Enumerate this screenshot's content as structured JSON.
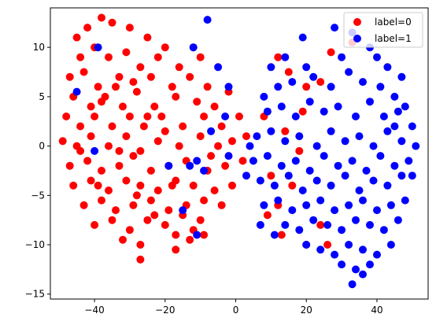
{
  "chart_data": {
    "type": "scatter",
    "title": "",
    "xlabel": "",
    "ylabel": "",
    "xlim": [
      -52.5,
      54.5
    ],
    "ylim": [
      -15.5,
      14.0
    ],
    "x_ticks": [
      -40,
      -20,
      0,
      20,
      40
    ],
    "y_ticks": [
      -15,
      -10,
      -5,
      0,
      5,
      10
    ],
    "grid": false,
    "legend_position": "top-right",
    "series": [
      {
        "name": "label=0",
        "color": "#ff0000",
        "points": [
          [
            -45,
            11
          ],
          [
            -42,
            12
          ],
          [
            -38,
            13
          ],
          [
            -35,
            12.5
          ],
          [
            -30,
            12
          ],
          [
            -25,
            11
          ],
          [
            -20,
            10
          ],
          [
            -12,
            10
          ],
          [
            -44,
            9
          ],
          [
            -40,
            10
          ],
          [
            -36,
            9
          ],
          [
            -31,
            9.5
          ],
          [
            -27,
            8
          ],
          [
            -22,
            9
          ],
          [
            -16,
            8
          ],
          [
            -10,
            9
          ],
          [
            -47,
            7
          ],
          [
            -43,
            7.5
          ],
          [
            -39,
            6
          ],
          [
            -33,
            7
          ],
          [
            -29,
            6.5
          ],
          [
            -24,
            7
          ],
          [
            -18,
            6
          ],
          [
            -13,
            7
          ],
          [
            -8,
            6
          ],
          [
            -46,
            5
          ],
          [
            -41,
            4
          ],
          [
            -37,
            5
          ],
          [
            -32,
            4
          ],
          [
            -28,
            5.5
          ],
          [
            -23,
            4
          ],
          [
            -17,
            5
          ],
          [
            -11,
            4.5
          ],
          [
            -6,
            4
          ],
          [
            -48,
            3
          ],
          [
            -44,
            2
          ],
          [
            -40,
            3
          ],
          [
            -35,
            2
          ],
          [
            -30,
            3
          ],
          [
            -26,
            2
          ],
          [
            -21,
            3
          ],
          [
            -15,
            2
          ],
          [
            -9,
            3
          ],
          [
            -4,
            2
          ],
          [
            -49,
            0.5
          ],
          [
            -45,
            0
          ],
          [
            -41,
            1
          ],
          [
            -36,
            0
          ],
          [
            -31,
            1
          ],
          [
            -27,
            -0.5
          ],
          [
            -22,
            0.5
          ],
          [
            -16,
            0
          ],
          [
            -10,
            1
          ],
          [
            -5,
            0
          ],
          [
            -1,
            0.5
          ],
          [
            -47,
            -2
          ],
          [
            -42,
            -1.5
          ],
          [
            -38,
            -2.5
          ],
          [
            -33,
            -2
          ],
          [
            -29,
            -1
          ],
          [
            -24,
            -2.5
          ],
          [
            -19,
            -2
          ],
          [
            -14,
            -1.5
          ],
          [
            -8,
            -2.5
          ],
          [
            -3,
            -2
          ],
          [
            2,
            -1.5
          ],
          [
            -46,
            -4
          ],
          [
            -41,
            -3.5
          ],
          [
            -36,
            -4.5
          ],
          [
            -31,
            -3.5
          ],
          [
            -27,
            -4
          ],
          [
            -22,
            -4.5
          ],
          [
            -17,
            -3.5
          ],
          [
            -12,
            -4
          ],
          [
            -6,
            -4.5
          ],
          [
            -1,
            -4
          ],
          [
            -43,
            -6
          ],
          [
            -38,
            -5.5
          ],
          [
            -34,
            -6.5
          ],
          [
            -29,
            -6
          ],
          [
            -24,
            -5.5
          ],
          [
            -19,
            -6.5
          ],
          [
            -14,
            -6
          ],
          [
            -9,
            -5.5
          ],
          [
            -4,
            -6
          ],
          [
            -40,
            -8
          ],
          [
            -35,
            -7.5
          ],
          [
            -30,
            -8.5
          ],
          [
            -25,
            -7.5
          ],
          [
            -20,
            -8
          ],
          [
            -15,
            -7
          ],
          [
            -10,
            -7.5
          ],
          [
            -32,
            -9.5
          ],
          [
            -27,
            -10
          ],
          [
            -17,
            -9
          ],
          [
            -13,
            -9.5
          ],
          [
            -9,
            -9
          ],
          [
            -27,
            -11.5
          ],
          [
            -17,
            -10.5
          ],
          [
            -12,
            -8.5
          ],
          [
            -38,
            4.5
          ],
          [
            -34,
            6
          ],
          [
            -25,
            3
          ],
          [
            -20,
            1.5
          ],
          [
            -33,
            -0.5
          ],
          [
            -28,
            -5
          ],
          [
            -23,
            -7
          ],
          [
            -18,
            -4
          ],
          [
            -44,
            -0.5
          ],
          [
            -39,
            -4
          ],
          [
            -7,
            -1
          ],
          [
            1,
            3
          ],
          [
            3,
            1
          ],
          [
            -2,
            5.5
          ],
          [
            8,
            3
          ],
          [
            12,
            9
          ],
          [
            15,
            7.5
          ],
          [
            20,
            6
          ],
          [
            24,
            6.5
          ],
          [
            27,
            9.5
          ],
          [
            33,
            10.5
          ],
          [
            10,
            -3
          ],
          [
            12,
            -6
          ],
          [
            9,
            -7
          ],
          [
            13,
            -9
          ],
          [
            20,
            -10
          ],
          [
            26,
            -10
          ],
          [
            24,
            -8
          ],
          [
            16,
            -4
          ],
          [
            19,
            3.5
          ],
          [
            18,
            -0.5
          ],
          [
            14,
            1.5
          ]
        ]
      },
      {
        "name": "label=1",
        "color": "#0000ff",
        "points": [
          [
            -39,
            10
          ],
          [
            -8,
            12.8
          ],
          [
            -12,
            10
          ],
          [
            -5,
            8
          ],
          [
            -2,
            6
          ],
          [
            -7,
            1.5
          ],
          [
            -2,
            -1
          ],
          [
            -11,
            -1.5
          ],
          [
            -13,
            -2
          ],
          [
            -9,
            -2.5
          ],
          [
            -45,
            5.5
          ],
          [
            -40,
            -0.5
          ],
          [
            -15,
            -6.5
          ],
          [
            -11,
            -9
          ],
          [
            -19,
            -2
          ],
          [
            -3,
            3
          ],
          [
            8,
            5
          ],
          [
            10,
            8
          ],
          [
            14,
            9
          ],
          [
            19,
            11
          ],
          [
            28,
            12
          ],
          [
            33,
            11.5
          ],
          [
            38,
            10
          ],
          [
            43,
            8
          ],
          [
            47,
            7
          ],
          [
            12,
            6
          ],
          [
            16,
            6.5
          ],
          [
            22,
            7
          ],
          [
            27,
            6
          ],
          [
            32,
            7.5
          ],
          [
            36,
            6.5
          ],
          [
            41,
            6
          ],
          [
            45,
            5
          ],
          [
            48,
            4
          ],
          [
            9,
            3.5
          ],
          [
            13,
            4
          ],
          [
            17,
            3
          ],
          [
            21,
            4.5
          ],
          [
            25,
            3.5
          ],
          [
            29,
            4
          ],
          [
            34,
            3
          ],
          [
            38,
            4.5
          ],
          [
            42,
            3
          ],
          [
            46,
            3.5
          ],
          [
            50,
            2
          ],
          [
            6,
            1
          ],
          [
            10,
            1.5
          ],
          [
            14,
            0.5
          ],
          [
            18,
            1
          ],
          [
            23,
            0
          ],
          [
            27,
            1.5
          ],
          [
            31,
            0.5
          ],
          [
            35,
            1
          ],
          [
            39,
            0
          ],
          [
            43,
            1.5
          ],
          [
            47,
            0.5
          ],
          [
            51,
            0
          ],
          [
            5,
            -1.5
          ],
          [
            9,
            -1
          ],
          [
            13,
            -2
          ],
          [
            17,
            -1.5
          ],
          [
            21,
            -2.5
          ],
          [
            25,
            -1
          ],
          [
            29,
            -2
          ],
          [
            33,
            -1.5
          ],
          [
            37,
            -2.5
          ],
          [
            41,
            -1
          ],
          [
            45,
            -2
          ],
          [
            49,
            -1.5
          ],
          [
            3,
            -3
          ],
          [
            7,
            -3.5
          ],
          [
            11,
            -4
          ],
          [
            15,
            -3
          ],
          [
            19,
            -4.5
          ],
          [
            23,
            -3.5
          ],
          [
            27,
            -4
          ],
          [
            31,
            -3
          ],
          [
            35,
            -4.5
          ],
          [
            39,
            -3.5
          ],
          [
            43,
            -4
          ],
          [
            47,
            -3
          ],
          [
            8,
            -6
          ],
          [
            12,
            -5.5
          ],
          [
            16,
            -6.5
          ],
          [
            20,
            -6
          ],
          [
            24,
            -5.5
          ],
          [
            28,
            -6.5
          ],
          [
            32,
            -6
          ],
          [
            36,
            -5.5
          ],
          [
            40,
            -6.5
          ],
          [
            44,
            -6
          ],
          [
            48,
            -5.5
          ],
          [
            14,
            -8
          ],
          [
            18,
            -8.5
          ],
          [
            22,
            -7.5
          ],
          [
            26,
            -8
          ],
          [
            30,
            -8.5
          ],
          [
            34,
            -7.5
          ],
          [
            38,
            -8
          ],
          [
            42,
            -8.5
          ],
          [
            46,
            -7.5
          ],
          [
            20,
            -10
          ],
          [
            24,
            -10.5
          ],
          [
            28,
            -11
          ],
          [
            32,
            -10
          ],
          [
            36,
            -10.5
          ],
          [
            40,
            -11
          ],
          [
            44,
            -10
          ],
          [
            30,
            -12
          ],
          [
            34,
            -12.5
          ],
          [
            38,
            -12
          ],
          [
            33,
            -14
          ],
          [
            36,
            -13
          ],
          [
            20,
            8
          ],
          [
            30,
            9
          ],
          [
            40,
            9
          ],
          [
            45,
            2
          ],
          [
            50,
            -3
          ],
          [
            4,
            0
          ],
          [
            7,
            -8
          ],
          [
            11,
            -9
          ]
        ]
      }
    ]
  }
}
